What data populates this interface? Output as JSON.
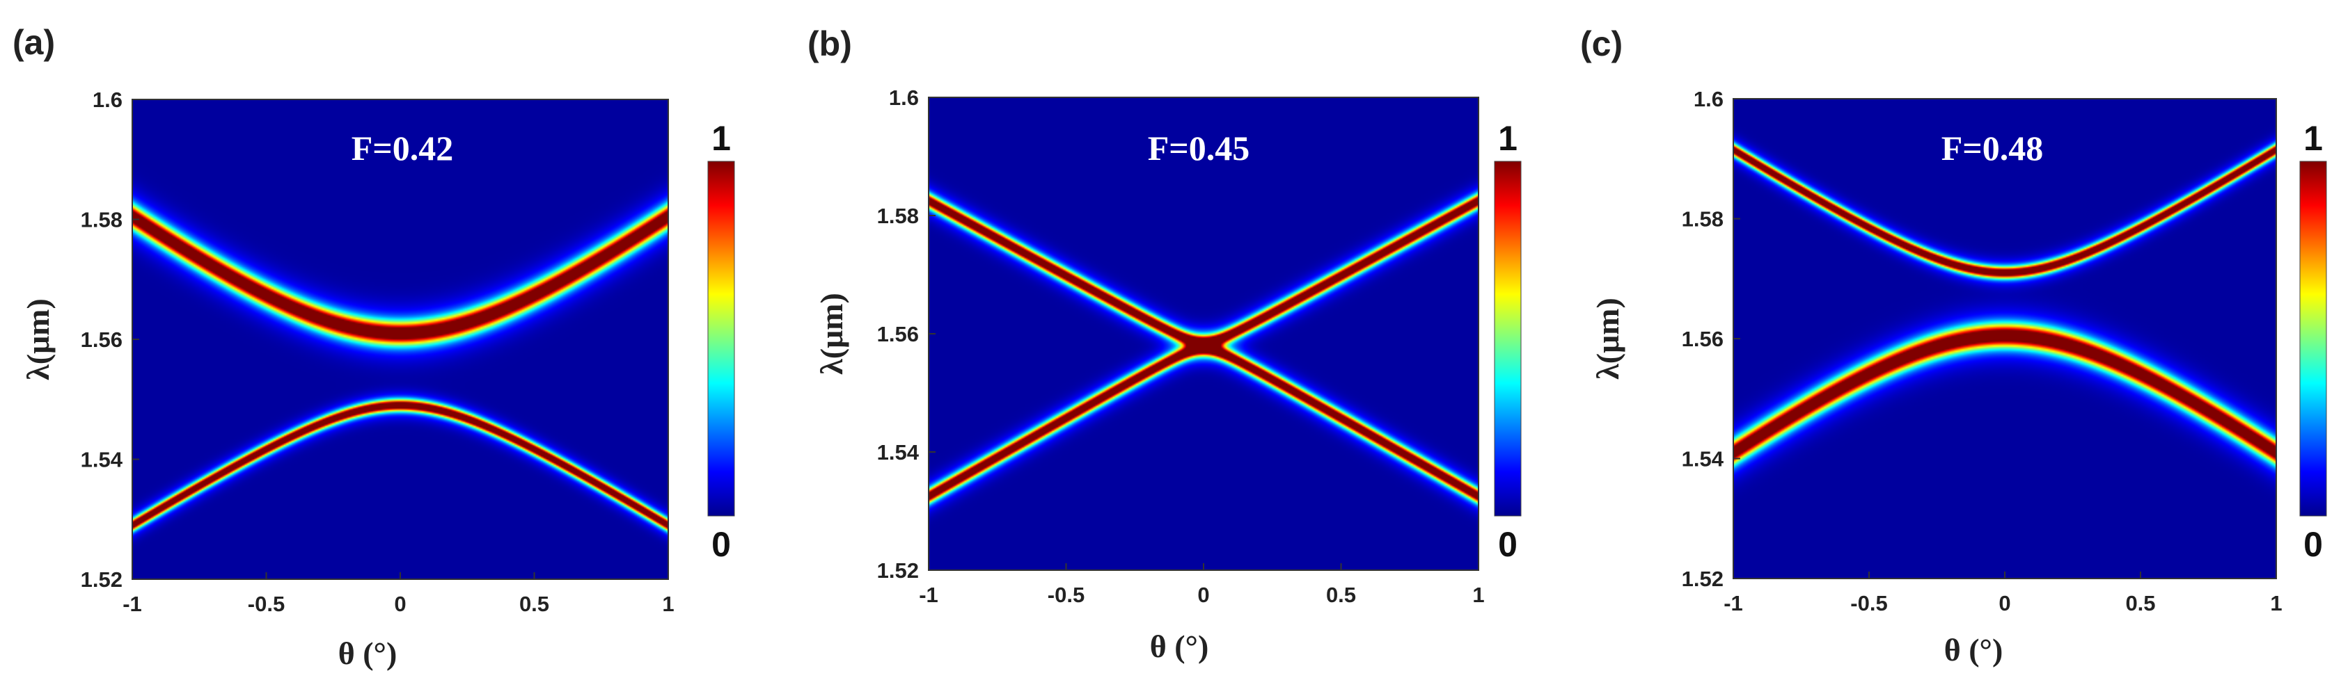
{
  "chart_data": [
    {
      "type": "heatmap",
      "panel_label": "(a)",
      "title": "F=0.42",
      "xlabel": "θ (°)",
      "ylabel": "λ(μm)",
      "xlim": [
        -1,
        1
      ],
      "ylim": [
        1.52,
        1.6
      ],
      "xticks": [
        "-1",
        "-0.5",
        "0",
        "0.5",
        "1"
      ],
      "yticks": [
        "1.52",
        "1.54",
        "1.56",
        "1.58",
        "1.6"
      ],
      "colorbar": {
        "min": 0,
        "max": 1,
        "min_label": "0",
        "max_label": "1",
        "colormap": "jet"
      },
      "bands": [
        {
          "name": "upper band",
          "center": 1.561,
          "edge": 1.5805,
          "halfwidth": 0.0018,
          "broad": 0.004,
          "curvature": 0.55
        },
        {
          "name": "lower band",
          "center": 1.549,
          "edge": 1.529,
          "halfwidth": 0.0009,
          "broad": 0.002,
          "curvature": 0.35
        }
      ]
    },
    {
      "type": "heatmap",
      "panel_label": "(b)",
      "title": "F=0.45",
      "xlabel": "θ (°)",
      "ylabel": "λ(μm)",
      "xlim": [
        -1,
        1
      ],
      "ylim": [
        1.52,
        1.6
      ],
      "xticks": [
        "-1",
        "-0.5",
        "0",
        "0.5",
        "1"
      ],
      "yticks": [
        "1.52",
        "1.54",
        "1.56",
        "1.58",
        "1.6"
      ],
      "colorbar": {
        "min": 0,
        "max": 1,
        "min_label": "0",
        "max_label": "1",
        "colormap": "jet"
      },
      "bands": [
        {
          "name": "upper band",
          "center": 1.5585,
          "edge": 1.5825,
          "halfwidth": 0.0011,
          "broad": 0.0025,
          "curvature": 0.06
        },
        {
          "name": "lower band",
          "center": 1.5575,
          "edge": 1.5325,
          "halfwidth": 0.0011,
          "broad": 0.0025,
          "curvature": 0.06
        }
      ]
    },
    {
      "type": "heatmap",
      "panel_label": "(c)",
      "title": "F=0.48",
      "xlabel": "θ (°)",
      "ylabel": "λ(μm)",
      "xlim": [
        -1,
        1
      ],
      "ylim": [
        1.52,
        1.6
      ],
      "xticks": [
        "-1",
        "-0.5",
        "0",
        "0.5",
        "1"
      ],
      "yticks": [
        "1.52",
        "1.54",
        "1.56",
        "1.58",
        "1.6"
      ],
      "colorbar": {
        "min": 0,
        "max": 1,
        "min_label": "0",
        "max_label": "1",
        "colormap": "jet"
      },
      "bands": [
        {
          "name": "upper band",
          "center": 1.571,
          "edge": 1.5915,
          "halfwidth": 0.0009,
          "broad": 0.002,
          "curvature": 0.35
        },
        {
          "name": "lower band",
          "center": 1.5605,
          "edge": 1.541,
          "halfwidth": 0.0018,
          "broad": 0.004,
          "curvature": 0.55
        }
      ]
    }
  ]
}
